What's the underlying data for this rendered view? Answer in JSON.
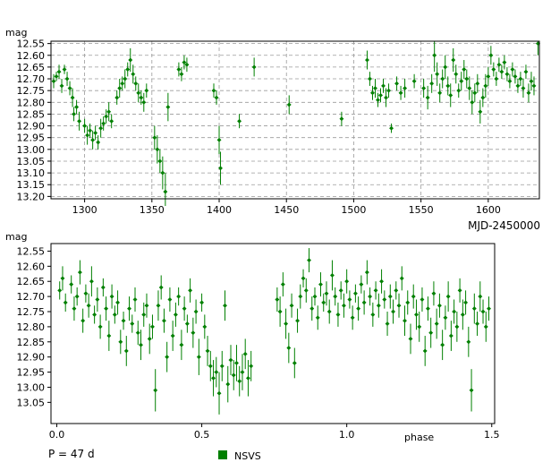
{
  "chart_data": [
    {
      "type": "scatter",
      "xlabel": "MJD-2450000",
      "ylabel": "mag",
      "xlim": [
        1275,
        1638
      ],
      "ylim": [
        13.21,
        12.54
      ],
      "y_inverted": true,
      "grid": true,
      "x_ticks": [
        "1300",
        "1350",
        "1400",
        "1450",
        "1500",
        "1550",
        "1600"
      ],
      "y_ticks": [
        "12.55",
        "12.60",
        "12.65",
        "12.70",
        "12.75",
        "12.80",
        "12.85",
        "12.90",
        "12.95",
        "13.00",
        "13.05",
        "13.10",
        "13.15",
        "13.20"
      ],
      "marker_color": "#008000",
      "points": [
        [
          1277,
          12.71,
          0.03
        ],
        [
          1279,
          12.69,
          0.02
        ],
        [
          1281,
          12.67,
          0.03
        ],
        [
          1283,
          12.73,
          0.03
        ],
        [
          1285,
          12.66,
          0.02
        ],
        [
          1287,
          12.7,
          0.03
        ],
        [
          1289,
          12.74,
          0.03
        ],
        [
          1291,
          12.78,
          0.04
        ],
        [
          1292,
          12.85,
          0.03
        ],
        [
          1294,
          12.82,
          0.03
        ],
        [
          1296,
          12.88,
          0.04
        ],
        [
          1300,
          12.9,
          0.03
        ],
        [
          1302,
          12.94,
          0.04
        ],
        [
          1304,
          12.92,
          0.03
        ],
        [
          1306,
          12.96,
          0.04
        ],
        [
          1308,
          12.93,
          0.03
        ],
        [
          1310,
          12.97,
          0.03
        ],
        [
          1312,
          12.91,
          0.04
        ],
        [
          1314,
          12.89,
          0.03
        ],
        [
          1316,
          12.86,
          0.03
        ],
        [
          1318,
          12.84,
          0.04
        ],
        [
          1320,
          12.88,
          0.03
        ],
        [
          1324,
          12.78,
          0.03
        ],
        [
          1326,
          12.74,
          0.04
        ],
        [
          1328,
          12.72,
          0.03
        ],
        [
          1330,
          12.7,
          0.04
        ],
        [
          1332,
          12.66,
          0.03
        ],
        [
          1334,
          12.62,
          0.05
        ],
        [
          1336,
          12.68,
          0.04
        ],
        [
          1338,
          12.72,
          0.03
        ],
        [
          1340,
          12.76,
          0.04
        ],
        [
          1342,
          12.78,
          0.03
        ],
        [
          1344,
          12.8,
          0.04
        ],
        [
          1346,
          12.75,
          0.03
        ],
        [
          1352,
          12.95,
          0.05
        ],
        [
          1354,
          13.0,
          0.06
        ],
        [
          1356,
          13.05,
          0.05
        ],
        [
          1358,
          13.1,
          0.07
        ],
        [
          1360,
          13.18,
          0.08
        ],
        [
          1362,
          12.82,
          0.06
        ],
        [
          1370,
          12.66,
          0.03
        ],
        [
          1372,
          12.68,
          0.03
        ],
        [
          1374,
          12.63,
          0.03
        ],
        [
          1376,
          12.64,
          0.03
        ],
        [
          1396,
          12.75,
          0.03
        ],
        [
          1398,
          12.78,
          0.03
        ],
        [
          1400,
          12.96,
          0.06
        ],
        [
          1401,
          13.08,
          0.07
        ],
        [
          1415,
          12.88,
          0.03
        ],
        [
          1426,
          12.65,
          0.04
        ],
        [
          1452,
          12.81,
          0.04
        ],
        [
          1491,
          12.87,
          0.03
        ],
        [
          1510,
          12.62,
          0.04
        ],
        [
          1512,
          12.7,
          0.03
        ],
        [
          1514,
          12.76,
          0.03
        ],
        [
          1516,
          12.74,
          0.04
        ],
        [
          1518,
          12.79,
          0.03
        ],
        [
          1520,
          12.77,
          0.03
        ],
        [
          1522,
          12.73,
          0.03
        ],
        [
          1524,
          12.78,
          0.04
        ],
        [
          1526,
          12.75,
          0.03
        ],
        [
          1528,
          12.91,
          0.02
        ],
        [
          1532,
          12.72,
          0.03
        ],
        [
          1535,
          12.76,
          0.03
        ],
        [
          1538,
          12.74,
          0.04
        ],
        [
          1545,
          12.71,
          0.03
        ],
        [
          1552,
          12.74,
          0.04
        ],
        [
          1555,
          12.78,
          0.05
        ],
        [
          1558,
          12.72,
          0.04
        ],
        [
          1560,
          12.6,
          0.07
        ],
        [
          1562,
          12.68,
          0.05
        ],
        [
          1564,
          12.76,
          0.04
        ],
        [
          1566,
          12.7,
          0.04
        ],
        [
          1568,
          12.65,
          0.05
        ],
        [
          1570,
          12.73,
          0.04
        ],
        [
          1572,
          12.77,
          0.05
        ],
        [
          1574,
          12.62,
          0.05
        ],
        [
          1576,
          12.68,
          0.04
        ],
        [
          1578,
          12.75,
          0.03
        ],
        [
          1580,
          12.71,
          0.04
        ],
        [
          1582,
          12.66,
          0.04
        ],
        [
          1584,
          12.7,
          0.04
        ],
        [
          1586,
          12.74,
          0.05
        ],
        [
          1588,
          12.8,
          0.05
        ],
        [
          1590,
          12.76,
          0.04
        ],
        [
          1592,
          12.72,
          0.04
        ],
        [
          1594,
          12.84,
          0.05
        ],
        [
          1596,
          12.78,
          0.04
        ],
        [
          1598,
          12.73,
          0.05
        ],
        [
          1600,
          12.69,
          0.04
        ],
        [
          1602,
          12.6,
          0.04
        ],
        [
          1604,
          12.66,
          0.03
        ],
        [
          1606,
          12.7,
          0.03
        ],
        [
          1608,
          12.64,
          0.03
        ],
        [
          1610,
          12.67,
          0.03
        ],
        [
          1612,
          12.63,
          0.03
        ],
        [
          1614,
          12.68,
          0.03
        ],
        [
          1616,
          12.71,
          0.03
        ],
        [
          1618,
          12.66,
          0.03
        ],
        [
          1620,
          12.69,
          0.03
        ],
        [
          1622,
          12.73,
          0.03
        ],
        [
          1624,
          12.7,
          0.03
        ],
        [
          1626,
          12.74,
          0.04
        ],
        [
          1628,
          12.67,
          0.03
        ],
        [
          1630,
          12.76,
          0.04
        ],
        [
          1632,
          12.71,
          0.04
        ],
        [
          1634,
          12.73,
          0.04
        ],
        [
          1637,
          12.55,
          0.05
        ]
      ]
    },
    {
      "type": "scatter",
      "xlabel": "phase",
      "ylabel": "mag",
      "xlim": [
        -0.02,
        1.51
      ],
      "ylim": [
        13.12,
        12.525
      ],
      "y_inverted": true,
      "grid": false,
      "x_ticks": [
        "0.0",
        "0.5",
        "1.0",
        "1.5"
      ],
      "y_ticks": [
        "12.55",
        "12.60",
        "12.65",
        "12.70",
        "12.75",
        "12.80",
        "12.85",
        "12.90",
        "12.95",
        "13.00",
        "13.05"
      ],
      "marker_color": "#008000",
      "points": [
        [
          0.01,
          12.68,
          0.03
        ],
        [
          0.02,
          12.64,
          0.04
        ],
        [
          0.03,
          12.72,
          0.03
        ],
        [
          0.05,
          12.66,
          0.03
        ],
        [
          0.06,
          12.74,
          0.04
        ],
        [
          0.07,
          12.7,
          0.03
        ],
        [
          0.08,
          12.62,
          0.04
        ],
        [
          0.09,
          12.78,
          0.04
        ],
        [
          0.1,
          12.69,
          0.03
        ],
        [
          0.11,
          12.73,
          0.04
        ],
        [
          0.12,
          12.65,
          0.05
        ],
        [
          0.13,
          12.76,
          0.03
        ],
        [
          0.14,
          12.71,
          0.04
        ],
        [
          0.15,
          12.8,
          0.04
        ],
        [
          0.16,
          12.67,
          0.03
        ],
        [
          0.17,
          12.74,
          0.04
        ],
        [
          0.18,
          12.83,
          0.05
        ],
        [
          0.19,
          12.7,
          0.04
        ],
        [
          0.2,
          12.76,
          0.03
        ],
        [
          0.21,
          12.72,
          0.04
        ],
        [
          0.22,
          12.85,
          0.04
        ],
        [
          0.23,
          12.78,
          0.03
        ],
        [
          0.24,
          12.88,
          0.05
        ],
        [
          0.25,
          12.74,
          0.04
        ],
        [
          0.26,
          12.79,
          0.03
        ],
        [
          0.27,
          12.71,
          0.04
        ],
        [
          0.28,
          12.82,
          0.04
        ],
        [
          0.29,
          12.86,
          0.05
        ],
        [
          0.3,
          12.76,
          0.04
        ],
        [
          0.31,
          12.73,
          0.04
        ],
        [
          0.32,
          12.84,
          0.05
        ],
        [
          0.33,
          12.8,
          0.04
        ],
        [
          0.34,
          13.01,
          0.07
        ],
        [
          0.35,
          12.73,
          0.05
        ],
        [
          0.36,
          12.67,
          0.04
        ],
        [
          0.37,
          12.78,
          0.04
        ],
        [
          0.38,
          12.9,
          0.05
        ],
        [
          0.39,
          12.71,
          0.04
        ],
        [
          0.4,
          12.83,
          0.05
        ],
        [
          0.41,
          12.76,
          0.04
        ],
        [
          0.42,
          12.7,
          0.03
        ],
        [
          0.43,
          12.86,
          0.05
        ],
        [
          0.44,
          12.74,
          0.04
        ],
        [
          0.45,
          12.79,
          0.03
        ],
        [
          0.46,
          12.68,
          0.04
        ],
        [
          0.47,
          12.82,
          0.05
        ],
        [
          0.48,
          12.75,
          0.04
        ],
        [
          0.49,
          12.9,
          0.06
        ],
        [
          0.5,
          12.72,
          0.03
        ],
        [
          0.51,
          12.8,
          0.04
        ],
        [
          0.52,
          12.88,
          0.05
        ],
        [
          0.53,
          12.93,
          0.05
        ],
        [
          0.54,
          12.97,
          0.06
        ],
        [
          0.55,
          12.95,
          0.05
        ],
        [
          0.56,
          13.02,
          0.07
        ],
        [
          0.57,
          12.93,
          0.05
        ],
        [
          0.58,
          12.73,
          0.05
        ],
        [
          0.59,
          12.99,
          0.06
        ],
        [
          0.6,
          12.91,
          0.05
        ],
        [
          0.61,
          12.96,
          0.05
        ],
        [
          0.62,
          12.92,
          0.06
        ],
        [
          0.63,
          12.98,
          0.05
        ],
        [
          0.64,
          12.95,
          0.06
        ],
        [
          0.65,
          12.89,
          0.05
        ],
        [
          0.66,
          12.97,
          0.06
        ],
        [
          0.67,
          12.93,
          0.05
        ],
        [
          0.76,
          12.71,
          0.04
        ],
        [
          0.77,
          12.75,
          0.05
        ],
        [
          0.78,
          12.66,
          0.04
        ],
        [
          0.79,
          12.79,
          0.05
        ],
        [
          0.8,
          12.87,
          0.05
        ],
        [
          0.81,
          12.73,
          0.04
        ],
        [
          0.82,
          12.92,
          0.05
        ],
        [
          0.83,
          12.78,
          0.04
        ],
        [
          0.84,
          12.7,
          0.04
        ],
        [
          0.85,
          12.64,
          0.03
        ],
        [
          0.86,
          12.68,
          0.04
        ],
        [
          0.87,
          12.58,
          0.04
        ],
        [
          0.88,
          12.74,
          0.04
        ],
        [
          0.89,
          12.7,
          0.03
        ],
        [
          0.9,
          12.77,
          0.04
        ],
        [
          0.91,
          12.66,
          0.04
        ],
        [
          0.92,
          12.72,
          0.03
        ],
        [
          0.93,
          12.69,
          0.04
        ],
        [
          0.94,
          12.75,
          0.04
        ],
        [
          0.95,
          12.63,
          0.05
        ],
        [
          0.96,
          12.7,
          0.03
        ],
        [
          0.97,
          12.76,
          0.04
        ],
        [
          0.98,
          12.68,
          0.03
        ],
        [
          0.99,
          12.73,
          0.04
        ],
        [
          1.0,
          12.65,
          0.04
        ],
        [
          1.01,
          12.71,
          0.03
        ],
        [
          1.02,
          12.77,
          0.04
        ],
        [
          1.03,
          12.69,
          0.03
        ],
        [
          1.04,
          12.74,
          0.04
        ],
        [
          1.05,
          12.66,
          0.03
        ],
        [
          1.06,
          12.72,
          0.04
        ],
        [
          1.07,
          12.62,
          0.04
        ],
        [
          1.08,
          12.7,
          0.03
        ],
        [
          1.09,
          12.76,
          0.04
        ],
        [
          1.1,
          12.68,
          0.03
        ],
        [
          1.11,
          12.73,
          0.04
        ],
        [
          1.12,
          12.65,
          0.04
        ],
        [
          1.13,
          12.71,
          0.03
        ],
        [
          1.14,
          12.79,
          0.04
        ],
        [
          1.15,
          12.7,
          0.04
        ],
        [
          1.16,
          12.75,
          0.04
        ],
        [
          1.17,
          12.68,
          0.03
        ],
        [
          1.18,
          12.73,
          0.04
        ],
        [
          1.19,
          12.64,
          0.04
        ],
        [
          1.2,
          12.78,
          0.05
        ],
        [
          1.21,
          12.72,
          0.04
        ],
        [
          1.22,
          12.84,
          0.05
        ],
        [
          1.23,
          12.7,
          0.04
        ],
        [
          1.24,
          12.76,
          0.05
        ],
        [
          1.25,
          12.8,
          0.05
        ],
        [
          1.26,
          12.71,
          0.04
        ],
        [
          1.27,
          12.88,
          0.05
        ],
        [
          1.28,
          12.74,
          0.04
        ],
        [
          1.29,
          12.82,
          0.05
        ],
        [
          1.3,
          12.69,
          0.04
        ],
        [
          1.31,
          12.79,
          0.05
        ],
        [
          1.32,
          12.73,
          0.04
        ],
        [
          1.33,
          12.86,
          0.05
        ],
        [
          1.34,
          12.77,
          0.04
        ],
        [
          1.35,
          12.7,
          0.05
        ],
        [
          1.36,
          12.83,
          0.05
        ],
        [
          1.37,
          12.75,
          0.04
        ],
        [
          1.38,
          12.8,
          0.05
        ],
        [
          1.39,
          12.68,
          0.04
        ],
        [
          1.4,
          12.76,
          0.05
        ],
        [
          1.41,
          12.72,
          0.04
        ],
        [
          1.42,
          12.85,
          0.05
        ],
        [
          1.43,
          13.01,
          0.07
        ],
        [
          1.44,
          12.74,
          0.05
        ],
        [
          1.45,
          12.79,
          0.04
        ],
        [
          1.46,
          12.7,
          0.05
        ],
        [
          1.47,
          12.75,
          0.04
        ],
        [
          1.48,
          12.8,
          0.05
        ],
        [
          1.49,
          12.74,
          0.04
        ]
      ]
    }
  ],
  "annotations": {
    "period": "P = 47 d",
    "legend_label": "NSVS",
    "legend_color": "#008000"
  }
}
